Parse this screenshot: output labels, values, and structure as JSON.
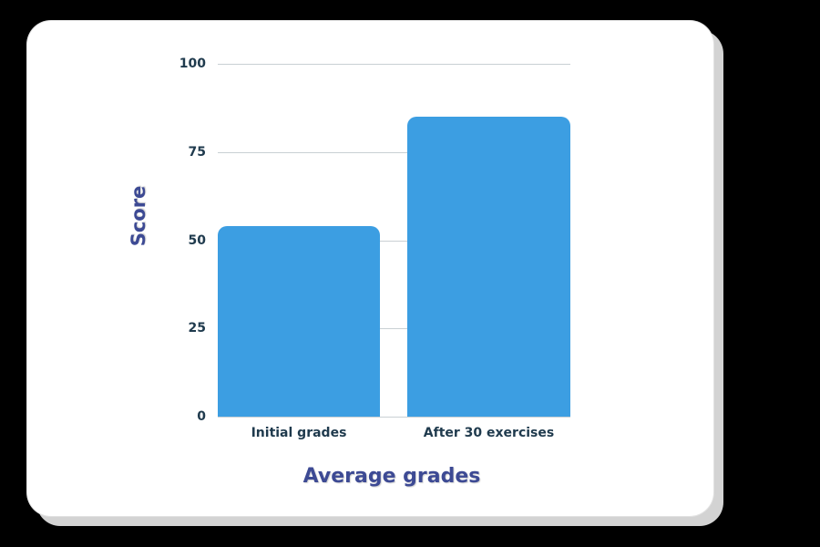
{
  "colors": {
    "bar": "#3c9ee2",
    "axis_title": "#3d4a94",
    "tick_text": "#1f3a4d",
    "gridline": "#c9d0d4",
    "card": "#ffffff",
    "shadow": "#d3d3d3",
    "background": "#000000"
  },
  "chart": {
    "y_axis_title": "Score",
    "x_axis_title": "Average grades",
    "y_ticks": [
      "100",
      "75",
      "50",
      "25",
      "0"
    ],
    "categories": [
      "Initial grades",
      "After 30 exercises"
    ]
  },
  "chart_data": {
    "type": "bar",
    "title": "",
    "xlabel": "Average grades",
    "ylabel": "Score",
    "categories": [
      "Initial grades",
      "After 30 exercises"
    ],
    "values": [
      54,
      85
    ],
    "ylim": [
      0,
      100
    ],
    "yticks": [
      0,
      25,
      50,
      75,
      100
    ],
    "grid": true,
    "legend": null
  }
}
